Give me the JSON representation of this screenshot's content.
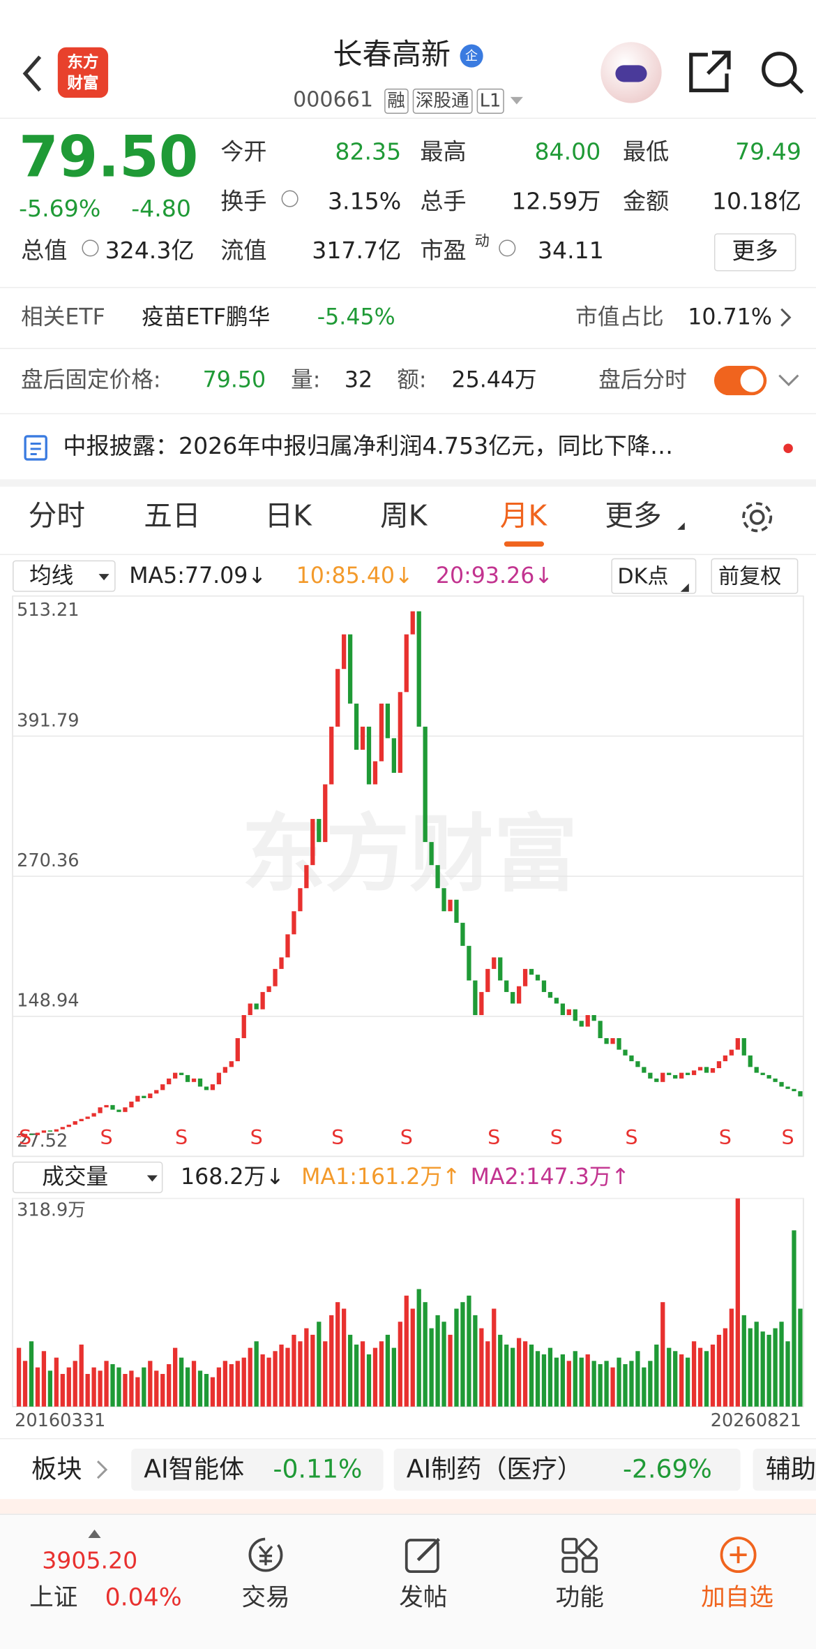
{
  "header": {
    "logo_top": "东方",
    "logo_bottom": "财富",
    "title": "长春高新",
    "badge": "企",
    "code": "000661",
    "tags": [
      "融",
      "深股通",
      "L1"
    ]
  },
  "quote": {
    "price": "79.50",
    "change_pct": "-5.69%",
    "change": "-4.80",
    "fields": [
      {
        "label": "今开",
        "value": "82.35"
      },
      {
        "label": "最高",
        "value": "84.00"
      },
      {
        "label": "最低",
        "value": "79.49"
      },
      {
        "label": "换手",
        "value": "3.15%"
      },
      {
        "label": "总手",
        "value": "12.59万"
      },
      {
        "label": "金额",
        "value": "10.18亿"
      },
      {
        "label": "总值",
        "value": "324.3亿"
      },
      {
        "label": "流值",
        "value": "317.7亿"
      },
      {
        "label": "市盈",
        "sup": "动",
        "value": "34.11"
      }
    ],
    "more": "更多"
  },
  "etf": {
    "label": "相关ETF",
    "name": "疫苗ETF鹏华",
    "change": "-5.45%",
    "share_label": "市值占比",
    "share": "10.71%"
  },
  "after_hours": {
    "label": "盘后固定价格:",
    "price": "79.50",
    "volume_label": "量:",
    "volume": "32",
    "amount_label": "额:",
    "amount": "25.44万",
    "timeshare": "盘后分时"
  },
  "news": "中报披露：2026年中报归属净利润4.753亿元，同比下降…",
  "tabs": [
    "分时",
    "五日",
    "日K",
    "周K",
    "月K",
    "更多"
  ],
  "chart_data": [
    {
      "type": "candlestick",
      "title": "均线",
      "legend": [
        "MA5:77.09↓",
        "10:85.40↓",
        "20:93.26↓"
      ],
      "buttons": [
        "DK点",
        "前复权"
      ],
      "watermark": "东方财富",
      "ylim": [
        27.52,
        513.21
      ],
      "yticks": [
        513.21,
        391.79,
        270.36,
        148.94,
        27.52
      ],
      "grid": true,
      "up_color": "#e8312f",
      "down_color": "#1f9a36",
      "values": [
        45,
        47,
        46,
        48,
        50,
        49,
        51,
        53,
        55,
        58,
        60,
        62,
        65,
        70,
        72,
        68,
        66,
        70,
        75,
        80,
        78,
        82,
        85,
        90,
        95,
        100,
        98,
        92,
        95,
        88,
        85,
        90,
        100,
        105,
        110,
        130,
        150,
        160,
        155,
        170,
        175,
        190,
        200,
        220,
        240,
        260,
        280,
        320,
        300,
        350,
        400,
        450,
        480,
        420,
        380,
        400,
        350,
        370,
        420,
        390,
        360,
        430,
        480,
        500,
        400,
        300,
        280,
        260,
        240,
        250,
        230,
        210,
        180,
        150,
        170,
        190,
        200,
        180,
        170,
        160,
        175,
        190,
        185,
        180,
        170,
        165,
        160,
        150,
        155,
        145,
        140,
        150,
        145,
        130,
        125,
        130,
        120,
        115,
        110,
        105,
        100,
        95,
        92,
        100,
        98,
        95,
        100,
        98,
        102,
        105,
        100,
        104,
        110,
        115,
        120,
        130,
        115,
        105,
        100,
        98,
        95,
        92,
        88,
        86,
        84,
        79.5
      ],
      "annotations": [
        {
          "text": "S",
          "index": 1
        },
        {
          "text": "S",
          "index": 14
        },
        {
          "text": "S",
          "index": 26
        },
        {
          "text": "S",
          "index": 38
        },
        {
          "text": "S",
          "index": 51
        },
        {
          "text": "S",
          "index": 62
        },
        {
          "text": "S",
          "index": 76
        },
        {
          "text": "S",
          "index": 86
        },
        {
          "text": "S",
          "index": 98
        },
        {
          "text": "S",
          "index": 113
        },
        {
          "text": "S",
          "index": 123
        }
      ]
    },
    {
      "type": "bar",
      "title": "成交量",
      "legend": [
        "168.2万↓",
        "MA1:161.2万↑",
        "MA2:147.3万↑"
      ],
      "categories": [
        "20160331",
        null,
        null,
        null,
        null,
        null,
        null,
        null,
        null,
        null,
        null,
        null,
        null,
        null,
        null,
        null,
        null,
        null,
        null,
        null,
        null,
        null,
        null,
        null,
        null,
        null,
        null,
        null,
        null,
        null,
        null,
        null,
        null,
        null,
        null,
        null,
        null,
        null,
        null,
        null,
        null,
        null,
        null,
        null,
        null,
        null,
        null,
        null,
        null,
        null,
        null,
        null,
        null,
        null,
        null,
        null,
        null,
        null,
        null,
        null,
        null,
        null,
        null,
        null,
        null,
        null,
        null,
        null,
        null,
        null,
        null,
        null,
        null,
        null,
        null,
        null,
        null,
        null,
        null,
        null,
        null,
        null,
        null,
        null,
        null,
        null,
        null,
        null,
        null,
        null,
        null,
        null,
        null,
        null,
        null,
        null,
        null,
        null,
        null,
        null,
        null,
        null,
        null,
        null,
        null,
        null,
        null,
        null,
        null,
        null,
        null,
        null,
        null,
        null,
        null,
        null,
        null,
        null,
        null,
        null,
        null,
        null,
        null,
        null,
        null,
        "20260821"
      ],
      "values": [
        90,
        70,
        100,
        60,
        85,
        55,
        75,
        50,
        60,
        70,
        95,
        50,
        60,
        55,
        70,
        65,
        60,
        50,
        55,
        45,
        60,
        70,
        55,
        50,
        65,
        90,
        75,
        60,
        70,
        55,
        50,
        45,
        60,
        70,
        65,
        70,
        75,
        90,
        100,
        80,
        75,
        85,
        95,
        90,
        110,
        100,
        120,
        110,
        130,
        100,
        140,
        160,
        150,
        110,
        95,
        100,
        80,
        90,
        100,
        110,
        90,
        130,
        170,
        150,
        180,
        160,
        120,
        140,
        130,
        110,
        150,
        160,
        170,
        140,
        120,
        100,
        150,
        110,
        95,
        90,
        105,
        100,
        95,
        85,
        80,
        90,
        75,
        80,
        70,
        85,
        75,
        80,
        70,
        65,
        70,
        60,
        75,
        65,
        70,
        85,
        60,
        70,
        95,
        160,
        90,
        85,
        80,
        75,
        100,
        90,
        85,
        95,
        110,
        120,
        150,
        318.9,
        140,
        120,
        130,
        115,
        110,
        120,
        130,
        100,
        270,
        150
      ],
      "ylim": [
        0,
        318.9
      ],
      "yticks": [
        {
          "value": 318.9,
          "label": "318.9万"
        }
      ],
      "up_color": "#e8312f",
      "down_color": "#1f9a36"
    }
  ],
  "sectors": {
    "label": "板块",
    "items": [
      {
        "name": "AI智能体",
        "change": "-0.11%"
      },
      {
        "name": "AI制药（医疗）",
        "change": "-2.69%"
      },
      {
        "name": "辅助"
      }
    ]
  },
  "bottom_nav": {
    "index_value": "3905.20",
    "index_name": "上证",
    "index_change": "0.04%",
    "items": [
      "交易",
      "发帖",
      "功能",
      "加自选"
    ]
  }
}
